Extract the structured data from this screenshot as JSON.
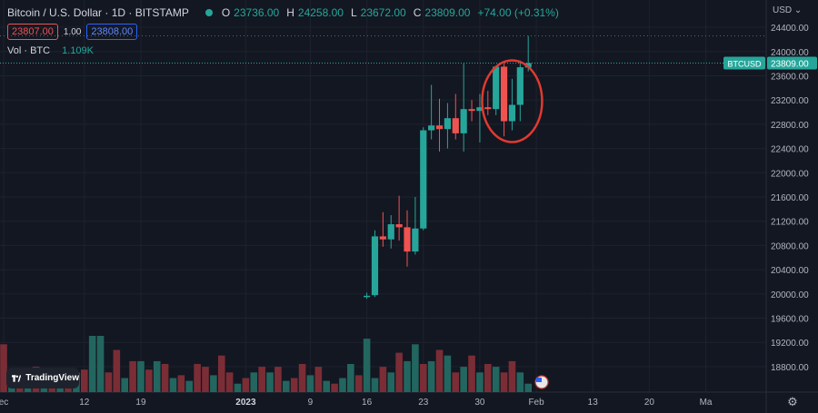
{
  "header": {
    "title": "Bitcoin / U.S. Dollar · 1D · BITSTAMP",
    "open_label": "O",
    "open": "23736.00",
    "high_label": "H",
    "high": "24258.00",
    "low_label": "L",
    "low": "23672.00",
    "close_label": "C",
    "close": "23809.00",
    "change": "+74.00 (+0.31%)"
  },
  "trade": {
    "sell": "23807.00",
    "spread": "1.00",
    "buy": "23808.00"
  },
  "volume": {
    "label": "Vol · BTC",
    "value": "1.109K"
  },
  "logo": {
    "text": "TradingView"
  },
  "currency": "USD",
  "price_tag": {
    "symbol": "BTCUSD",
    "price": "23809.00"
  },
  "colors": {
    "up": "#26a69a",
    "down": "#ef5350",
    "background": "#131722",
    "grid": "#1e222d",
    "highlight_circle": "#e03a30"
  },
  "chart_data": {
    "type": "candlestick",
    "y_ticks": [
      18800,
      19200,
      19600,
      20000,
      20400,
      20800,
      21200,
      21600,
      22000,
      22400,
      22800,
      23200,
      23600,
      24000,
      24400
    ],
    "ylim": [
      18380,
      24850
    ],
    "x_ticks": [
      {
        "i": 0,
        "label": "ec"
      },
      {
        "i": 10,
        "label": "12"
      },
      {
        "i": 17,
        "label": "19"
      },
      {
        "i": 30,
        "label": "2023"
      },
      {
        "i": 38,
        "label": "9"
      },
      {
        "i": 45,
        "label": "16"
      },
      {
        "i": 52,
        "label": "23"
      },
      {
        "i": 59,
        "label": "30"
      },
      {
        "i": 66,
        "label": "Feb"
      },
      {
        "i": 73,
        "label": "13"
      },
      {
        "i": 80,
        "label": "20"
      },
      {
        "i": 87,
        "label": "Ma"
      }
    ],
    "candles": [
      {
        "i": 45,
        "o": 19950,
        "h": 20020,
        "l": 19920,
        "c": 19970
      },
      {
        "i": 46,
        "o": 19980,
        "h": 21050,
        "l": 19950,
        "c": 20950
      },
      {
        "i": 47,
        "o": 20950,
        "h": 21350,
        "l": 20780,
        "c": 20900
      },
      {
        "i": 48,
        "o": 20900,
        "h": 21300,
        "l": 20750,
        "c": 21150
      },
      {
        "i": 49,
        "o": 21150,
        "h": 21620,
        "l": 20880,
        "c": 21100
      },
      {
        "i": 50,
        "o": 21100,
        "h": 21380,
        "l": 20450,
        "c": 20700
      },
      {
        "i": 51,
        "o": 20700,
        "h": 21600,
        "l": 20650,
        "c": 21080
      },
      {
        "i": 52,
        "o": 21080,
        "h": 22750,
        "l": 21050,
        "c": 22700
      },
      {
        "i": 53,
        "o": 22700,
        "h": 23450,
        "l": 22550,
        "c": 22780
      },
      {
        "i": 54,
        "o": 22780,
        "h": 23220,
        "l": 22350,
        "c": 22720
      },
      {
        "i": 55,
        "o": 22720,
        "h": 23150,
        "l": 22400,
        "c": 22900
      },
      {
        "i": 56,
        "o": 22900,
        "h": 23300,
        "l": 22550,
        "c": 22650
      },
      {
        "i": 57,
        "o": 22650,
        "h": 23800,
        "l": 22350,
        "c": 23050
      },
      {
        "i": 58,
        "o": 23050,
        "h": 23200,
        "l": 22850,
        "c": 23020
      },
      {
        "i": 59,
        "o": 23020,
        "h": 23300,
        "l": 22500,
        "c": 23080
      },
      {
        "i": 60,
        "o": 23080,
        "h": 23350,
        "l": 22950,
        "c": 23050
      },
      {
        "i": 61,
        "o": 23050,
        "h": 23750,
        "l": 22950,
        "c": 23750
      },
      {
        "i": 62,
        "o": 23750,
        "h": 23800,
        "l": 22600,
        "c": 22850
      },
      {
        "i": 63,
        "o": 22850,
        "h": 23550,
        "l": 22700,
        "c": 23120
      },
      {
        "i": 64,
        "o": 23120,
        "h": 23850,
        "l": 22850,
        "c": 23740
      },
      {
        "i": 65,
        "o": 23736,
        "h": 24258,
        "l": 23672,
        "c": 23809
      }
    ],
    "volumes": [
      {
        "i": 0,
        "v": 0.85,
        "d": "down"
      },
      {
        "i": 1,
        "v": 0.4,
        "d": "up"
      },
      {
        "i": 2,
        "v": 0.35,
        "d": "down"
      },
      {
        "i": 3,
        "v": 0.3,
        "d": "up"
      },
      {
        "i": 4,
        "v": 0.45,
        "d": "down"
      },
      {
        "i": 5,
        "v": 0.2,
        "d": "up"
      },
      {
        "i": 6,
        "v": 0.3,
        "d": "down"
      },
      {
        "i": 7,
        "v": 0.25,
        "d": "up"
      },
      {
        "i": 8,
        "v": 0.3,
        "d": "down"
      },
      {
        "i": 9,
        "v": 0.35,
        "d": "up"
      },
      {
        "i": 10,
        "v": 0.4,
        "d": "down"
      },
      {
        "i": 11,
        "v": 1.0,
        "d": "up"
      },
      {
        "i": 12,
        "v": 1.0,
        "d": "up"
      },
      {
        "i": 13,
        "v": 0.35,
        "d": "down"
      },
      {
        "i": 14,
        "v": 0.75,
        "d": "down"
      },
      {
        "i": 15,
        "v": 0.25,
        "d": "up"
      },
      {
        "i": 16,
        "v": 0.55,
        "d": "down"
      },
      {
        "i": 17,
        "v": 0.55,
        "d": "up"
      },
      {
        "i": 18,
        "v": 0.4,
        "d": "down"
      },
      {
        "i": 19,
        "v": 0.55,
        "d": "up"
      },
      {
        "i": 20,
        "v": 0.5,
        "d": "down"
      },
      {
        "i": 21,
        "v": 0.25,
        "d": "up"
      },
      {
        "i": 22,
        "v": 0.3,
        "d": "down"
      },
      {
        "i": 23,
        "v": 0.2,
        "d": "up"
      },
      {
        "i": 24,
        "v": 0.5,
        "d": "down"
      },
      {
        "i": 25,
        "v": 0.45,
        "d": "down"
      },
      {
        "i": 26,
        "v": 0.3,
        "d": "up"
      },
      {
        "i": 27,
        "v": 0.65,
        "d": "down"
      },
      {
        "i": 28,
        "v": 0.35,
        "d": "down"
      },
      {
        "i": 29,
        "v": 0.15,
        "d": "up"
      },
      {
        "i": 30,
        "v": 0.25,
        "d": "down"
      },
      {
        "i": 31,
        "v": 0.35,
        "d": "up"
      },
      {
        "i": 32,
        "v": 0.45,
        "d": "down"
      },
      {
        "i": 33,
        "v": 0.35,
        "d": "up"
      },
      {
        "i": 34,
        "v": 0.45,
        "d": "down"
      },
      {
        "i": 35,
        "v": 0.2,
        "d": "up"
      },
      {
        "i": 36,
        "v": 0.25,
        "d": "down"
      },
      {
        "i": 37,
        "v": 0.5,
        "d": "down"
      },
      {
        "i": 38,
        "v": 0.3,
        "d": "up"
      },
      {
        "i": 39,
        "v": 0.45,
        "d": "down"
      },
      {
        "i": 40,
        "v": 0.2,
        "d": "up"
      },
      {
        "i": 41,
        "v": 0.15,
        "d": "down"
      },
      {
        "i": 42,
        "v": 0.25,
        "d": "up"
      },
      {
        "i": 43,
        "v": 0.5,
        "d": "up"
      },
      {
        "i": 44,
        "v": 0.3,
        "d": "down"
      },
      {
        "i": 45,
        "v": 0.95,
        "d": "up"
      },
      {
        "i": 46,
        "v": 0.25,
        "d": "up"
      },
      {
        "i": 47,
        "v": 0.45,
        "d": "down"
      },
      {
        "i": 48,
        "v": 0.35,
        "d": "up"
      },
      {
        "i": 49,
        "v": 0.7,
        "d": "down"
      },
      {
        "i": 50,
        "v": 0.55,
        "d": "up"
      },
      {
        "i": 51,
        "v": 0.85,
        "d": "up"
      },
      {
        "i": 52,
        "v": 0.5,
        "d": "down"
      },
      {
        "i": 53,
        "v": 0.55,
        "d": "up"
      },
      {
        "i": 54,
        "v": 0.75,
        "d": "down"
      },
      {
        "i": 55,
        "v": 0.65,
        "d": "up"
      },
      {
        "i": 56,
        "v": 0.35,
        "d": "down"
      },
      {
        "i": 57,
        "v": 0.45,
        "d": "up"
      },
      {
        "i": 58,
        "v": 0.65,
        "d": "down"
      },
      {
        "i": 59,
        "v": 0.35,
        "d": "up"
      },
      {
        "i": 60,
        "v": 0.5,
        "d": "down"
      },
      {
        "i": 61,
        "v": 0.45,
        "d": "up"
      },
      {
        "i": 62,
        "v": 0.35,
        "d": "down"
      },
      {
        "i": 63,
        "v": 0.55,
        "d": "down"
      },
      {
        "i": 64,
        "v": 0.35,
        "d": "up"
      },
      {
        "i": 65,
        "v": 0.15,
        "d": "up"
      }
    ],
    "grid": true,
    "annotation": "red ellipse around last five candles"
  }
}
